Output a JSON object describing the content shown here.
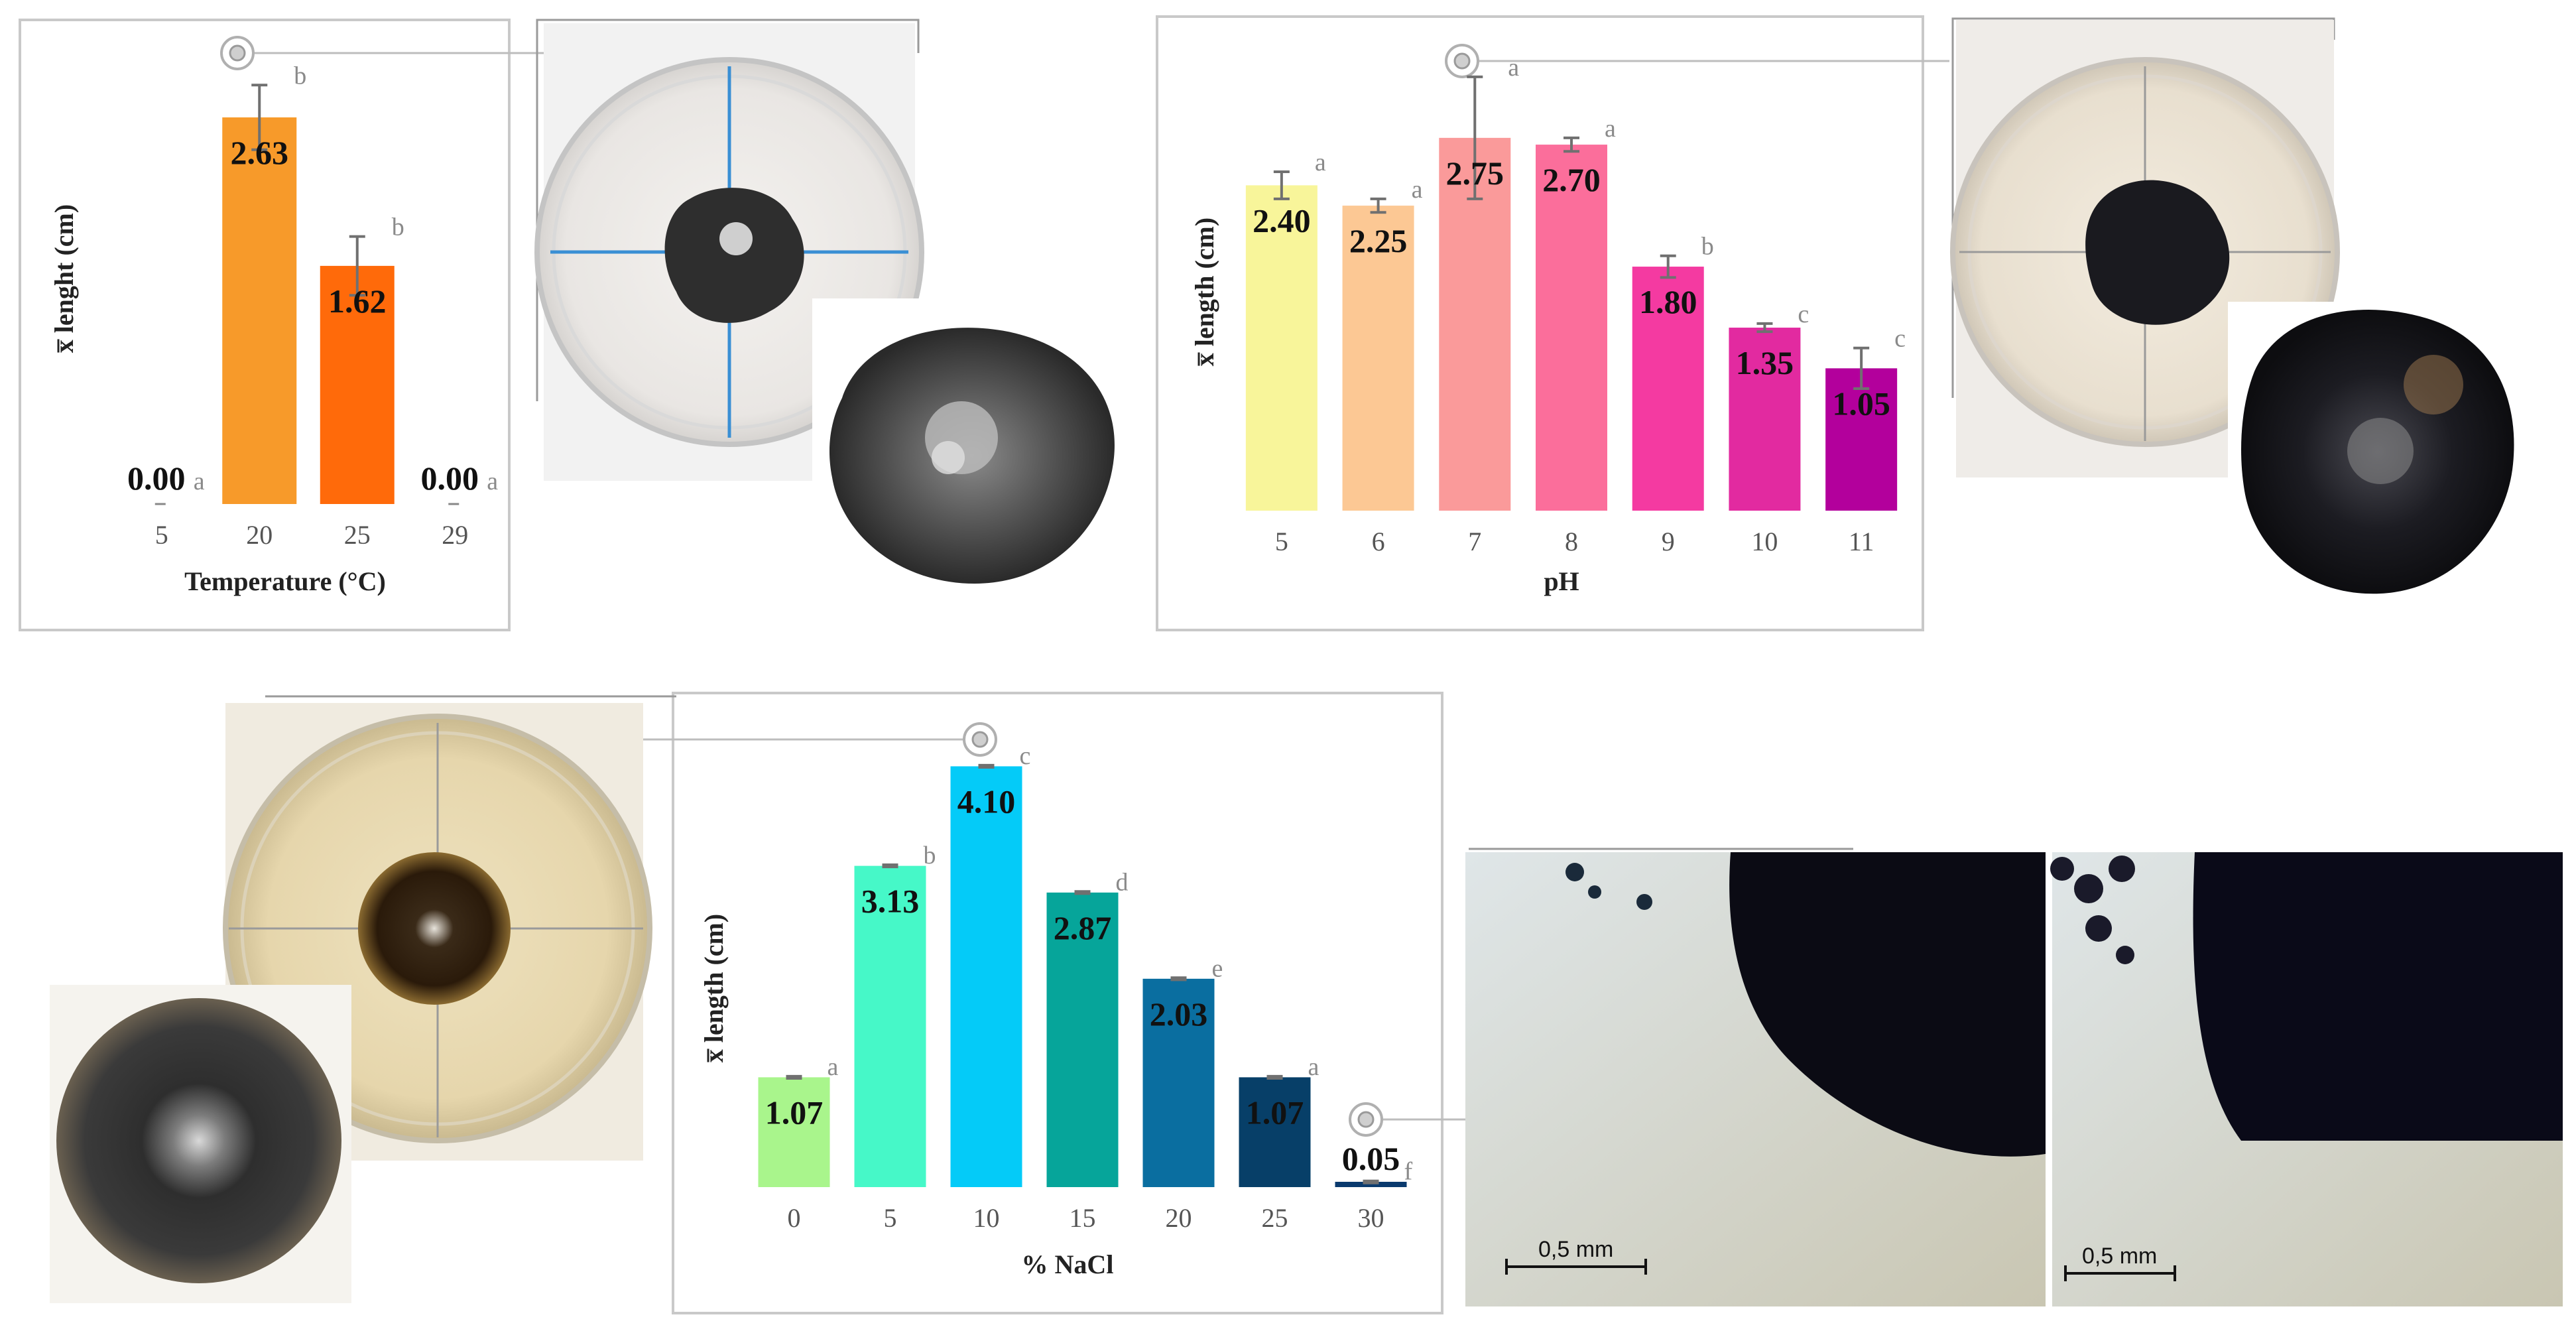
{
  "chart_data": [
    {
      "type": "bar",
      "xlabel": "Temperature (°C)",
      "ylabel": "x̅ lenght (cm)",
      "categories": [
        "5",
        "20",
        "25",
        "29"
      ],
      "values": [
        0.0,
        2.63,
        1.62,
        0.0
      ],
      "value_labels": [
        "0.00",
        "2.63",
        "1.62",
        "0.00"
      ],
      "errors": [
        0,
        0.22,
        0.2,
        0
      ],
      "letters": [
        "a",
        "b",
        "b",
        "a"
      ],
      "colors": [
        "#f79a2a",
        "#f79a2a",
        "#ff6a0a",
        "#f79a2a"
      ],
      "ylim": [
        0,
        3
      ]
    },
    {
      "type": "bar",
      "xlabel": "pH",
      "ylabel": "x̅ length (cm)",
      "categories": [
        "5",
        "6",
        "7",
        "8",
        "9",
        "10",
        "11"
      ],
      "values": [
        2.4,
        2.25,
        2.75,
        2.7,
        1.8,
        1.35,
        1.05
      ],
      "value_labels": [
        "2.40",
        "2.25",
        "2.75",
        "2.70",
        "1.80",
        "1.35",
        "1.05"
      ],
      "errors": [
        0.1,
        0.05,
        0.45,
        0.05,
        0.08,
        0.03,
        0.15
      ],
      "letters": [
        "a",
        "a",
        "a",
        "a",
        "b",
        "c",
        "c"
      ],
      "colors": [
        "#f8f59a",
        "#fcc894",
        "#fa9a9a",
        "#fb6e9b",
        "#f43aa1",
        "#e22aa0",
        "#b3009c"
      ],
      "ylim": [
        0,
        3.4
      ]
    },
    {
      "type": "bar",
      "xlabel": "% NaCl",
      "ylabel": "x̅ length (cm)",
      "categories": [
        "0",
        "5",
        "10",
        "15",
        "20",
        "25",
        "30"
      ],
      "values": [
        1.07,
        3.13,
        4.1,
        2.87,
        2.03,
        1.07,
        0.05
      ],
      "value_labels": [
        "1.07",
        "3.13",
        "4.10",
        "2.87",
        "2.03",
        "1.07",
        "0.05"
      ],
      "errors": [
        0.01,
        0.01,
        0.01,
        0.01,
        0.01,
        0.01,
        0.01
      ],
      "letters": [
        "a",
        "b",
        "c",
        "d",
        "e",
        "a",
        "f"
      ],
      "colors": [
        "#a9f58c",
        "#46f8c8",
        "#04cbf8",
        "#06a59a",
        "#0a6ea0",
        "#073f68",
        "#0a3a6e"
      ],
      "ylim": [
        0,
        4.2
      ]
    }
  ],
  "scale_bars": [
    "0,5 mm",
    "0,5 mm"
  ]
}
